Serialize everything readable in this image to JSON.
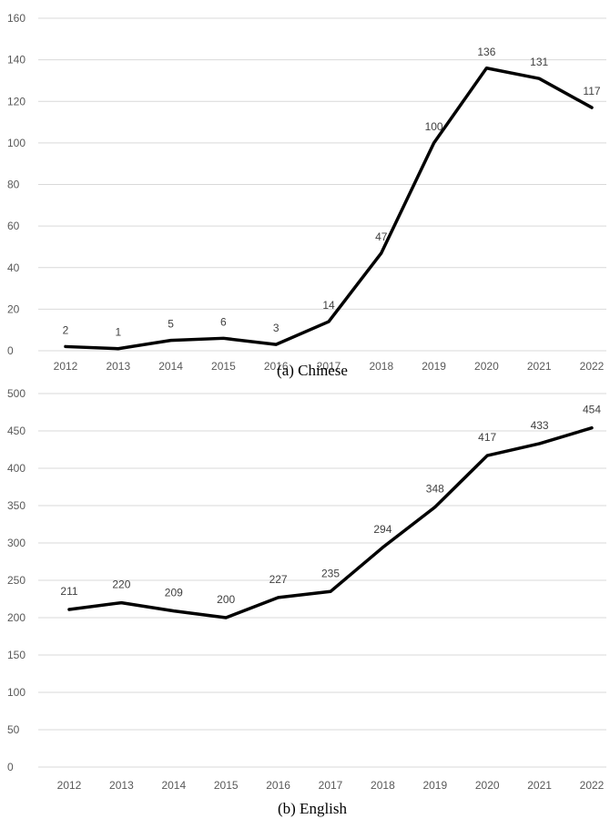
{
  "chart_data": [
    {
      "type": "line",
      "caption": "(a) Chinese",
      "categories": [
        "2012",
        "2013",
        "2014",
        "2015",
        "2016",
        "2017",
        "2018",
        "2019",
        "2020",
        "2021",
        "2022"
      ],
      "values": [
        2,
        1,
        5,
        6,
        3,
        14,
        47,
        100,
        136,
        131,
        117
      ],
      "ylim": [
        0,
        160
      ],
      "yticks": [
        0,
        20,
        40,
        60,
        80,
        100,
        120,
        140,
        160
      ],
      "grid": true,
      "line_color": "#000000"
    },
    {
      "type": "line",
      "caption": "(b) English",
      "categories": [
        "2012",
        "2013",
        "2014",
        "2015",
        "2016",
        "2017",
        "2018",
        "2019",
        "2020",
        "2021",
        "2022"
      ],
      "values": [
        211,
        220,
        209,
        200,
        227,
        235,
        294,
        348,
        417,
        433,
        454
      ],
      "ylim": [
        0,
        500
      ],
      "yticks": [
        0,
        50,
        100,
        150,
        200,
        250,
        300,
        350,
        400,
        450,
        500
      ],
      "grid": true,
      "line_color": "#000000"
    }
  ]
}
